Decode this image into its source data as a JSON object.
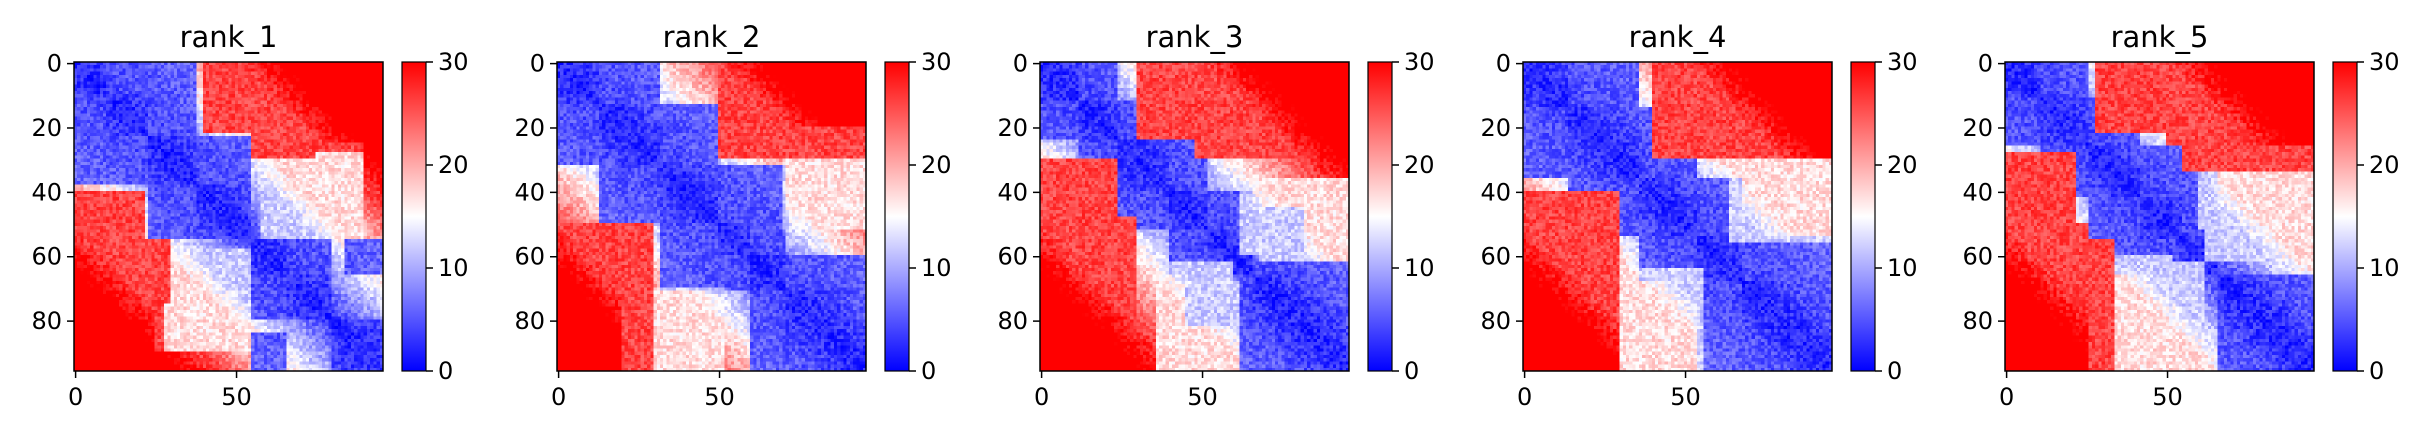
{
  "figure": {
    "panels": [
      {
        "title": "rank_1"
      },
      {
        "title": "rank_2"
      },
      {
        "title": "rank_3"
      },
      {
        "title": "rank_4"
      },
      {
        "title": "rank_5"
      }
    ]
  },
  "chart_data": [
    {
      "type": "heatmap",
      "title": "rank_1",
      "n": 96,
      "xticks": [
        0,
        50
      ],
      "yticks": [
        0,
        20,
        40,
        60,
        80
      ],
      "colorbar": {
        "min": 0,
        "max": 30,
        "ticks": [
          0,
          10,
          20,
          30
        ],
        "colors": [
          "#0000ff",
          "#ffffff",
          "#ff0000"
        ]
      },
      "domains": [
        [
          0,
          10
        ],
        [
          10,
          23
        ],
        [
          23,
          38
        ],
        [
          38,
          55
        ],
        [
          55,
          66
        ],
        [
          66,
          80
        ],
        [
          80,
          96
        ]
      ],
      "near_blocks": [
        [
          [
            0,
            23
          ],
          [
            0,
            23
          ]
        ],
        [
          [
            0,
            38
          ],
          [
            10,
            38
          ]
        ],
        [
          [
            23,
            55
          ],
          [
            23,
            55
          ]
        ],
        [
          [
            55,
            80
          ],
          [
            55,
            80
          ]
        ],
        [
          [
            55,
            66
          ],
          [
            84,
            96
          ]
        ]
      ],
      "far_blocks": [
        [
          [
            0,
            28
          ],
          [
            55,
            96
          ]
        ],
        [
          [
            55,
            75
          ],
          [
            0,
            30
          ]
        ],
        [
          [
            40,
            56
          ],
          [
            0,
            22
          ]
        ]
      ],
      "white_regions": [
        [
          [
            60,
            80
          ],
          [
            30,
            52
          ]
        ],
        [
          [
            25,
            55
          ],
          [
            58,
            90
          ]
        ]
      ]
    },
    {
      "type": "heatmap",
      "title": "rank_2",
      "n": 96,
      "xticks": [
        0,
        50
      ],
      "yticks": [
        0,
        20,
        40,
        60,
        80
      ],
      "colorbar": {
        "min": 0,
        "max": 30,
        "ticks": [
          0,
          10,
          20,
          30
        ],
        "colors": [
          "#0000ff",
          "#ffffff",
          "#ff0000"
        ]
      },
      "domains": [
        [
          0,
          13
        ],
        [
          13,
          32
        ],
        [
          32,
          50
        ],
        [
          50,
          60
        ],
        [
          60,
          71
        ],
        [
          71,
          96
        ]
      ],
      "near_blocks": [
        [
          [
            0,
            32
          ],
          [
            0,
            32
          ]
        ],
        [
          [
            13,
            50
          ],
          [
            13,
            50
          ]
        ],
        [
          [
            32,
            71
          ],
          [
            32,
            71
          ]
        ],
        [
          [
            60,
            96
          ],
          [
            60,
            96
          ]
        ]
      ],
      "far_blocks": [
        [
          [
            0,
            30
          ],
          [
            50,
            96
          ]
        ],
        [
          [
            50,
            96
          ],
          [
            0,
            30
          ]
        ]
      ],
      "white_regions": [
        [
          [
            70,
            96
          ],
          [
            30,
            52
          ]
        ],
        [
          [
            20,
            50
          ],
          [
            70,
            96
          ]
        ]
      ]
    },
    {
      "type": "heatmap",
      "title": "rank_3",
      "n": 96,
      "xticks": [
        0,
        50
      ],
      "yticks": [
        0,
        20,
        40,
        60,
        80
      ],
      "colorbar": {
        "min": 0,
        "max": 30,
        "ticks": [
          0,
          10,
          20,
          30
        ],
        "colors": [
          "#0000ff",
          "#ffffff",
          "#ff0000"
        ]
      },
      "domains": [
        [
          0,
          12
        ],
        [
          12,
          24
        ],
        [
          24,
          40
        ],
        [
          40,
          52
        ],
        [
          52,
          66
        ],
        [
          66,
          96
        ]
      ],
      "near_blocks": [
        [
          [
            0,
            24
          ],
          [
            0,
            24
          ]
        ],
        [
          [
            12,
            52
          ],
          [
            12,
            52
          ]
        ],
        [
          [
            40,
            66
          ],
          [
            40,
            66
          ]
        ],
        [
          [
            62,
            96
          ],
          [
            62,
            96
          ]
        ],
        [
          [
            45,
            60
          ],
          [
            70,
            82
          ]
        ]
      ],
      "far_blocks": [
        [
          [
            0,
            30
          ],
          [
            48,
            96
          ]
        ],
        [
          [
            30,
            70
          ],
          [
            0,
            24
          ]
        ]
      ],
      "white_regions": [
        [
          [
            62,
            96
          ],
          [
            36,
            60
          ]
        ],
        [
          [
            50,
            62
          ],
          [
            68,
            96
          ]
        ]
      ]
    },
    {
      "type": "heatmap",
      "title": "rank_4",
      "n": 96,
      "xticks": [
        0,
        50
      ],
      "yticks": [
        0,
        20,
        40,
        60,
        80
      ],
      "colorbar": {
        "min": 0,
        "max": 30,
        "ticks": [
          0,
          10,
          20,
          30
        ],
        "colors": [
          "#0000ff",
          "#ffffff",
          "#ff0000"
        ]
      },
      "domains": [
        [
          0,
          14
        ],
        [
          14,
          36
        ],
        [
          36,
          54
        ],
        [
          54,
          68
        ],
        [
          68,
          96
        ]
      ],
      "near_blocks": [
        [
          [
            0,
            36
          ],
          [
            0,
            36
          ]
        ],
        [
          [
            14,
            54
          ],
          [
            14,
            54
          ]
        ],
        [
          [
            36,
            68
          ],
          [
            36,
            68
          ]
        ],
        [
          [
            54,
            96
          ],
          [
            54,
            96
          ]
        ]
      ],
      "far_blocks": [
        [
          [
            0,
            30
          ],
          [
            52,
            96
          ]
        ],
        [
          [
            40,
            96
          ],
          [
            0,
            30
          ]
        ]
      ],
      "white_regions": [
        [
          [
            65,
            96
          ],
          [
            34,
            56
          ]
        ],
        [
          [
            30,
            56
          ],
          [
            64,
            96
          ]
        ]
      ]
    },
    {
      "type": "heatmap",
      "title": "rank_5",
      "n": 96,
      "xticks": [
        0,
        50
      ],
      "yticks": [
        0,
        20,
        40,
        60,
        80
      ],
      "colorbar": {
        "min": 0,
        "max": 30,
        "ticks": [
          0,
          10,
          20,
          30
        ],
        "colors": [
          "#0000ff",
          "#ffffff",
          "#ff0000"
        ]
      },
      "domains": [
        [
          0,
          11
        ],
        [
          11,
          26
        ],
        [
          26,
          42
        ],
        [
          42,
          55
        ],
        [
          55,
          66
        ],
        [
          66,
          96
        ]
      ],
      "near_blocks": [
        [
          [
            0,
            26
          ],
          [
            0,
            26
          ]
        ],
        [
          [
            11,
            42
          ],
          [
            11,
            42
          ]
        ],
        [
          [
            26,
            66
          ],
          [
            26,
            66
          ]
        ],
        [
          [
            66,
            96
          ],
          [
            66,
            96
          ]
        ]
      ],
      "far_blocks": [
        [
          [
            0,
            26
          ],
          [
            50,
            96
          ]
        ],
        [
          [
            28,
            55
          ],
          [
            0,
            22
          ]
        ],
        [
          [
            55,
            96
          ],
          [
            0,
            34
          ]
        ]
      ],
      "white_regions": [
        [
          [
            62,
            96
          ],
          [
            34,
            62
          ]
        ],
        [
          [
            26,
            52
          ],
          [
            60,
            96
          ]
        ]
      ]
    }
  ]
}
